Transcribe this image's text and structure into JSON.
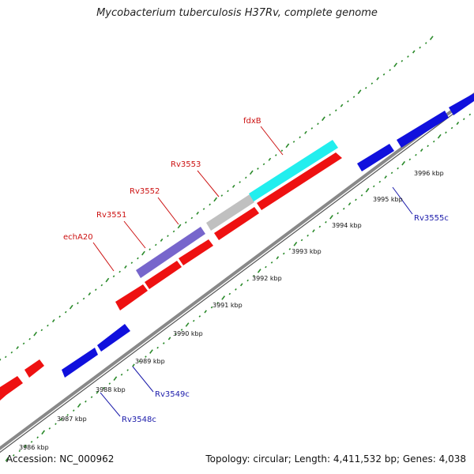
{
  "title": "Mycobacterium tuberculosis H37Rv, complete genome",
  "accession": "Accession: NC_000962",
  "summary": "Topology: circular; Length: 4,411,532 bp; Genes: 4,038",
  "colors": {
    "backbone": "#888888",
    "forward_gene": "#ee1111",
    "reverse_gene": "#1010dd",
    "highlight_gene": "#7766cc",
    "gray_gene": "#c0c0c0",
    "cyan_gene": "#22eeee",
    "gc_ticks": "#2a8a2a",
    "forward_label": "#cc1111",
    "reverse_label": "#1a1aaa"
  },
  "scale": {
    "unit": "kbp",
    "ticks": [
      {
        "value": 3986,
        "label": "3986 kbp"
      },
      {
        "value": 3987,
        "label": "3987 kbp"
      },
      {
        "value": 3988,
        "label": "3988 kbp"
      },
      {
        "value": 3989,
        "label": "3989 kbp"
      },
      {
        "value": 3990,
        "label": "3990 kbp"
      },
      {
        "value": 3991,
        "label": "3991 kbp"
      },
      {
        "value": 3992,
        "label": "3992 kbp"
      },
      {
        "value": 3993,
        "label": "3993 kbp"
      },
      {
        "value": 3994,
        "label": "3994 kbp"
      },
      {
        "value": 3995,
        "label": "3995 kbp"
      },
      {
        "value": 3996,
        "label": "3996 kbp"
      }
    ]
  },
  "gene_labels": {
    "forward": [
      "echA20",
      "Rv3551",
      "Rv3552",
      "Rv3553",
      "fdxB"
    ],
    "reverse": [
      "Rv3548c",
      "Rv3549c",
      "Rv3555c"
    ]
  }
}
